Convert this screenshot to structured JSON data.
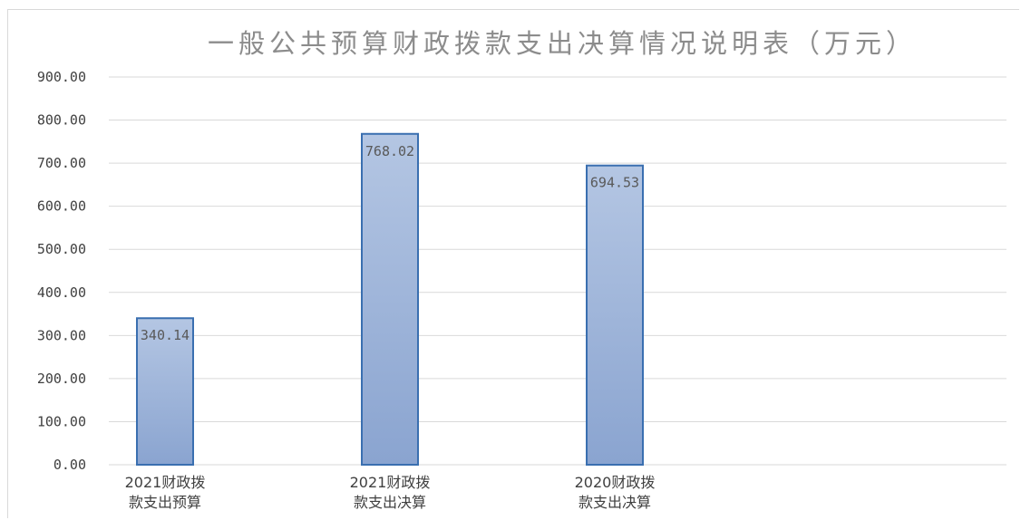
{
  "chart_data": {
    "type": "bar",
    "title": "一般公共预算财政拨款支出决算情况说明表（万元）",
    "categories": [
      [
        "2021财政拨",
        "款支出预算"
      ],
      [
        "2021财政拨",
        "款支出决算"
      ],
      [
        "2020财政拨",
        "款支出决算"
      ]
    ],
    "values": [
      340.14,
      768.02,
      694.53
    ],
    "data_labels": [
      "340.14",
      "768.02",
      "694.53"
    ],
    "yticks": [
      "0.00",
      "100.00",
      "200.00",
      "300.00",
      "400.00",
      "500.00",
      "600.00",
      "700.00",
      "800.00",
      "900.00"
    ],
    "ylim": [
      0,
      900
    ],
    "grid": true,
    "legend": "none",
    "colors": {
      "bar_top": "#b4c6e3",
      "bar_bottom": "#8aa4d0",
      "bar_border": "#3a6fb0",
      "grid": "#d9d9d9",
      "title": "#8c8c8c",
      "tick_text": "#404040"
    }
  }
}
